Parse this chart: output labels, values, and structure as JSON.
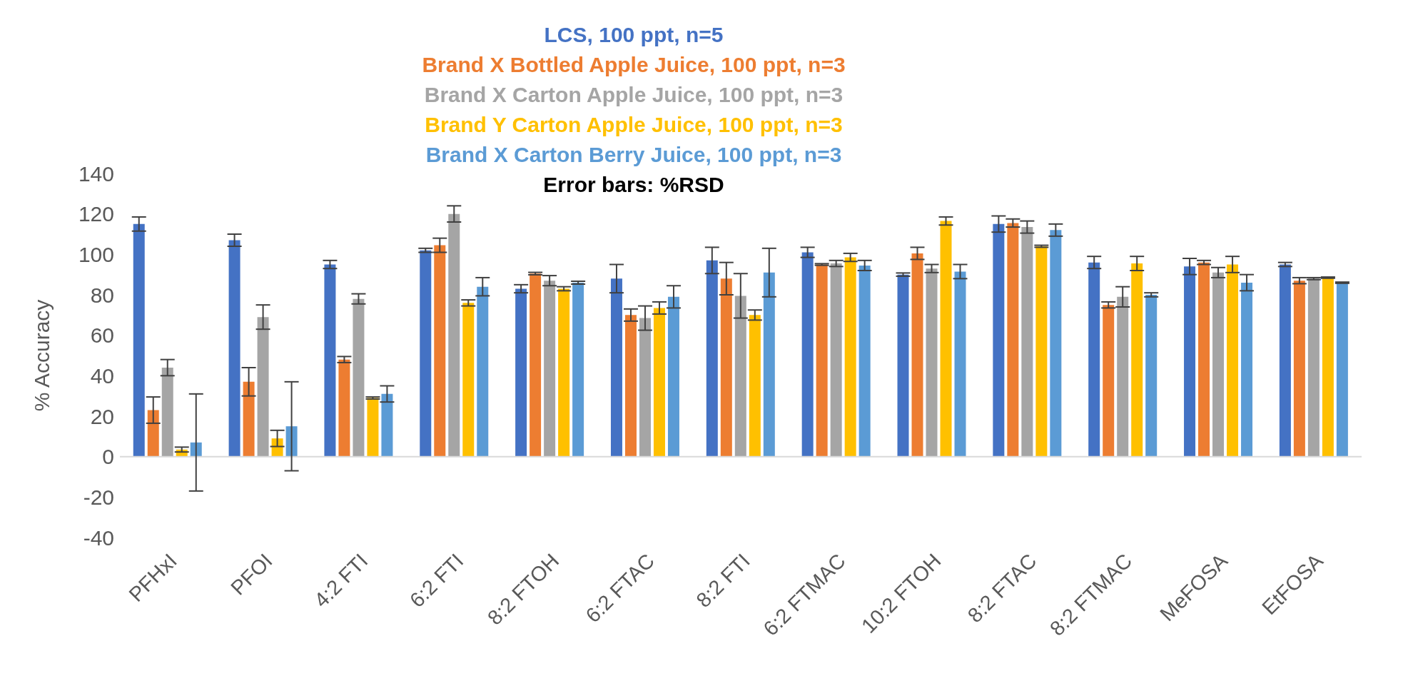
{
  "chart_data": {
    "type": "bar",
    "categories": [
      "PFHxI",
      "PFOI",
      "4:2 FTI",
      "6:2 FTI",
      "8:2 FTOH",
      "6:2 FTAC",
      "8:2 FTI",
      "6:2 FTMAC",
      "10:2 FTOH",
      "8:2 FTAC",
      "8:2 FTMAC",
      "MeFOSA",
      "EtFOSA"
    ],
    "series": [
      {
        "name": "LCS, 100 ppt, n=5",
        "color": "#4472c4",
        "values": [
          115,
          107,
          95,
          102,
          83,
          88,
          97,
          101,
          90,
          115,
          96,
          94,
          95
        ],
        "errors": [
          3.5,
          3,
          2,
          1,
          2,
          7,
          6.5,
          2.5,
          0.8,
          4,
          3,
          4,
          1
        ]
      },
      {
        "name": "Brand X Bottled Apple Juice, 100 ppt, n=3",
        "color": "#ed7d31",
        "values": [
          23,
          37,
          48,
          104.5,
          90.5,
          70,
          88,
          95,
          100.5,
          115.5,
          75,
          96,
          87
        ],
        "errors": [
          6.5,
          7,
          1.5,
          3.5,
          0.6,
          3,
          8,
          0.4,
          3,
          2,
          1.5,
          1,
          1.5
        ]
      },
      {
        "name": "Brand X Carton Apple Juice, 100 ppt, n=3",
        "color": "#a5a5a5",
        "values": [
          44,
          69,
          78,
          120,
          87,
          68.5,
          79.5,
          95.5,
          93,
          113.5,
          79,
          91,
          88
        ],
        "errors": [
          4,
          6,
          2.5,
          4,
          2.5,
          6,
          11,
          1.5,
          2,
          3,
          5,
          2.5,
          0.5
        ]
      },
      {
        "name": "Brand Y Carton Apple Juice, 100 ppt, n=3",
        "color": "#ffc000",
        "values": [
          3.5,
          9,
          29,
          76,
          83,
          73.5,
          70,
          98.5,
          116.5,
          104,
          95.5,
          95,
          88.5
        ],
        "errors": [
          1.2,
          4,
          0.5,
          1.5,
          1,
          3,
          2.5,
          2,
          2,
          0.5,
          3.5,
          4,
          0.3
        ]
      },
      {
        "name": "Brand X Carton Berry Juice, 100 ppt, n=3",
        "color": "#5b9bd5",
        "values": [
          7,
          15,
          31,
          84,
          86,
          79,
          91,
          94.5,
          91.5,
          112,
          80,
          86,
          86
        ],
        "errors": [
          24,
          22,
          4,
          4.5,
          0.7,
          5.5,
          12,
          2.5,
          3.5,
          3,
          1,
          4,
          0.3
        ]
      }
    ],
    "ylabel": "% Accuracy",
    "ylim": [
      -40,
      140
    ],
    "yticks": [
      -40,
      -20,
      0,
      20,
      40,
      60,
      80,
      100,
      120,
      140
    ],
    "annotations": [
      "Error bars: %RSD"
    ],
    "legend": "top"
  }
}
